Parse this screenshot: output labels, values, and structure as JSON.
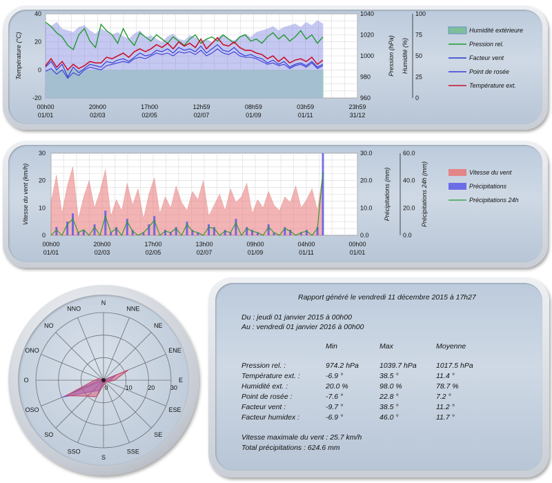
{
  "chart_data": [
    {
      "type": "line",
      "x_ticks": [
        [
          "00h00",
          "01/01"
        ],
        [
          "20h00",
          "02/03"
        ],
        [
          "17h00",
          "02/05"
        ],
        [
          "12h59",
          "02/07"
        ],
        [
          "08h59",
          "01/09"
        ],
        [
          "03h59",
          "01/11"
        ],
        [
          "23h59",
          "31/12"
        ]
      ],
      "y_left": {
        "label": "Température (°C)",
        "min": -20,
        "max": 40,
        "ticks": [
          -20,
          0,
          20,
          40
        ]
      },
      "y_right1": {
        "label": "Pression (hPa)",
        "min": 960,
        "max": 1040,
        "ticks": [
          960,
          980,
          1000,
          1020,
          1040
        ]
      },
      "y_right2": {
        "label": "Humidité (%)",
        "min": 0,
        "max": 100,
        "ticks": [
          0,
          25,
          50,
          75,
          100
        ]
      },
      "series": [
        {
          "name": "Humidité extérieure",
          "axis": "right2",
          "style": "area",
          "color": "#7f86e0",
          "values": [
            88,
            85,
            90,
            82,
            80,
            78,
            84,
            86,
            80,
            76,
            82,
            79,
            75,
            78,
            73,
            70,
            76,
            80,
            72,
            74,
            70,
            66,
            73,
            76,
            70,
            68,
            74,
            72,
            67,
            70,
            66,
            72,
            75,
            70,
            68,
            73,
            76,
            72,
            78,
            80,
            82,
            85,
            80,
            84,
            86,
            88,
            84,
            90,
            86,
            92,
            88
          ]
        },
        {
          "name": "Pression rel.",
          "axis": "right1",
          "color": "#1f9a2e",
          "values": [
            1032,
            1028,
            1022,
            1018,
            1010,
            1006,
            1020,
            1026,
            1014,
            1008,
            1030,
            1024,
            1020,
            1012,
            1026,
            1016,
            1010,
            1022,
            1018,
            1014,
            1020,
            1016,
            1012,
            1018,
            1014,
            1010,
            1016,
            1020,
            1012,
            1016,
            1018,
            1014,
            1020,
            1016,
            1012,
            1018,
            1020,
            1014,
            1016,
            1012,
            1018,
            1022,
            1016,
            1020,
            1014,
            1018,
            1024,
            1016,
            1020,
            1012,
            1018
          ]
        },
        {
          "name": "Facteur vent",
          "axis": "left",
          "color": "#2634d4",
          "values": [
            2,
            6,
            0,
            4,
            -5,
            2,
            -2,
            1,
            4,
            3,
            2,
            6,
            5,
            7,
            8,
            6,
            9,
            12,
            10,
            11,
            14,
            13,
            15,
            12,
            16,
            14,
            15,
            13,
            17,
            12,
            15,
            18,
            14,
            13,
            16,
            12,
            10,
            11,
            9,
            8,
            5,
            7,
            4,
            6,
            2,
            4,
            5,
            3,
            6,
            2,
            4
          ]
        },
        {
          "name": "Point de rosée",
          "axis": "left",
          "color": "#3a3ad8",
          "values": [
            -1,
            1,
            -3,
            0,
            -6,
            -2,
            -4,
            0,
            2,
            1,
            0,
            3,
            4,
            5,
            6,
            5,
            8,
            9,
            8,
            10,
            12,
            11,
            12,
            10,
            13,
            12,
            13,
            11,
            14,
            10,
            12,
            15,
            12,
            11,
            13,
            10,
            9,
            9,
            8,
            6,
            4,
            5,
            3,
            4,
            1,
            3,
            4,
            2,
            5,
            1,
            3
          ]
        },
        {
          "name": "Température ext.",
          "axis": "left",
          "color": "#c8102e",
          "values": [
            3,
            8,
            2,
            6,
            0,
            4,
            1,
            3,
            6,
            5,
            5,
            9,
            8,
            10,
            12,
            9,
            13,
            15,
            13,
            15,
            18,
            16,
            19,
            15,
            20,
            17,
            19,
            16,
            22,
            15,
            19,
            23,
            18,
            17,
            20,
            16,
            14,
            14,
            12,
            11,
            8,
            10,
            6,
            9,
            5,
            7,
            8,
            6,
            9,
            4,
            7
          ]
        },
        {
          "name": "Humidité (filled base)",
          "axis": "right2",
          "style": "baseline",
          "color": "#9be79b",
          "values": []
        }
      ],
      "legend": [
        "Humidité extérieure",
        "Pression rel.",
        "Facteur vent",
        "Point de rosée",
        "Température ext."
      ],
      "grid": true
    },
    {
      "type": "bar",
      "x_ticks": [
        [
          "00h00",
          "01/01"
        ],
        [
          "20h00",
          "02/03"
        ],
        [
          "17h00",
          "02/05"
        ],
        [
          "13h00",
          "02/07"
        ],
        [
          "09h00",
          "01/09"
        ],
        [
          "04h00",
          "01/11"
        ],
        [
          "00h00",
          "01/01"
        ]
      ],
      "y_left": {
        "label": "Vitesse du vent (km/h)",
        "min": 0,
        "max": 30,
        "ticks": [
          0,
          10,
          20,
          30
        ]
      },
      "y_right1": {
        "label": "Précipitations (mm)",
        "min": 0,
        "max": 30,
        "ticks": [
          "0.0",
          "10.0",
          "20.0",
          "30.0"
        ]
      },
      "y_right2": {
        "label": "Précipitations 24h (mm)",
        "min": 0,
        "max": 60,
        "ticks": [
          "0.0",
          "20.0",
          "40.0",
          "60.0"
        ]
      },
      "series": [
        {
          "name": "Vitesse du vent",
          "axis": "left",
          "color": "#e87878",
          "values": [
            12,
            22,
            8,
            18,
            25,
            6,
            14,
            20,
            10,
            16,
            24,
            7,
            13,
            9,
            19,
            11,
            17,
            6,
            15,
            21,
            8,
            14,
            10,
            18,
            12,
            9,
            16,
            13,
            20,
            7,
            11,
            15,
            9,
            17,
            12,
            14,
            19,
            8,
            13,
            10,
            16,
            11,
            9,
            14,
            12,
            18,
            10,
            13,
            17,
            9,
            23
          ]
        },
        {
          "name": "Précipitations",
          "axis": "right1",
          "color": "#5b5be8",
          "values": [
            0,
            3,
            0,
            5,
            8,
            1,
            2,
            0,
            4,
            0,
            9,
            1,
            3,
            0,
            6,
            2,
            0,
            1,
            4,
            7,
            0,
            2,
            1,
            3,
            0,
            5,
            2,
            1,
            0,
            4,
            3,
            0,
            2,
            1,
            6,
            0,
            3,
            2,
            1,
            0,
            4,
            1,
            0,
            3,
            2,
            0,
            1,
            2,
            0,
            3,
            30
          ]
        },
        {
          "name": "Précipitations 24h",
          "axis": "right2",
          "color": "#1f9a2e",
          "values": [
            0,
            4,
            0,
            8,
            12,
            2,
            4,
            0,
            6,
            0,
            14,
            2,
            5,
            0,
            10,
            3,
            0,
            2,
            6,
            11,
            0,
            3,
            2,
            5,
            0,
            8,
            3,
            2,
            0,
            6,
            5,
            0,
            3,
            2,
            9,
            0,
            5,
            3,
            2,
            0,
            6,
            2,
            0,
            5,
            3,
            0,
            2,
            3,
            0,
            5,
            46
          ]
        }
      ],
      "legend": [
        "Vitesse du vent",
        "Précipitations",
        "Précipitations 24h"
      ],
      "grid": true
    },
    {
      "type": "radar",
      "directions": [
        "N",
        "NNE",
        "NE",
        "ENE",
        "E",
        "ESE",
        "SE",
        "SSE",
        "S",
        "SSO",
        "SO",
        "OSO",
        "O",
        "ONO",
        "NO",
        "NNO"
      ],
      "radial_ticks": [
        0,
        10,
        20,
        30
      ],
      "radial_max": 30,
      "series": [
        {
          "name": "Fréquence",
          "color": "#8060d0",
          "values": [
            0,
            0,
            0,
            6,
            3,
            1,
            0,
            1,
            1,
            5,
            7,
            20,
            2,
            1,
            0,
            0
          ]
        },
        {
          "name": "Vitesse",
          "color": "#c04060",
          "values": [
            0,
            0,
            0,
            12,
            5,
            2,
            1,
            2,
            2,
            8,
            10,
            18,
            4,
            2,
            0,
            0
          ]
        }
      ]
    }
  ],
  "report": {
    "title": "Rapport généré le vendredi 11 décembre 2015 à 17h27",
    "from": "Du : jeudi 01 janvier 2015 à 00h00",
    "to": "Au : vendredi 01 janvier 2016 à 00h00",
    "headers": [
      "Min",
      "Max",
      "Moyenne"
    ],
    "rows": [
      {
        "label": "Pression rel. :",
        "min": "974.2 hPa",
        "max": "1039.7 hPa",
        "avg": "1017.5 hPa"
      },
      {
        "label": "Température ext. :",
        "min": "-6.9 °",
        "max": "38.5 °",
        "avg": "11.4 °"
      },
      {
        "label": "Humidité ext. :",
        "min": "20.0 %",
        "max": "98.0 %",
        "avg": "78.7 %"
      },
      {
        "label": "Point de rosée :",
        "min": "-7.6 °",
        "max": "22.8 °",
        "avg": "7.2 °"
      },
      {
        "label": "Facteur vent :",
        "min": "-9.7 °",
        "max": "38.5 °",
        "avg": "11.2 °"
      },
      {
        "label": "Facteur humidex :",
        "min": "-6.9 °",
        "max": "46.0 °",
        "avg": "11.7 °"
      }
    ],
    "max_wind": "Vitesse maximale du vent : 25.7 km/h",
    "total_rain": "Total précipitations : 624.6 mm"
  }
}
